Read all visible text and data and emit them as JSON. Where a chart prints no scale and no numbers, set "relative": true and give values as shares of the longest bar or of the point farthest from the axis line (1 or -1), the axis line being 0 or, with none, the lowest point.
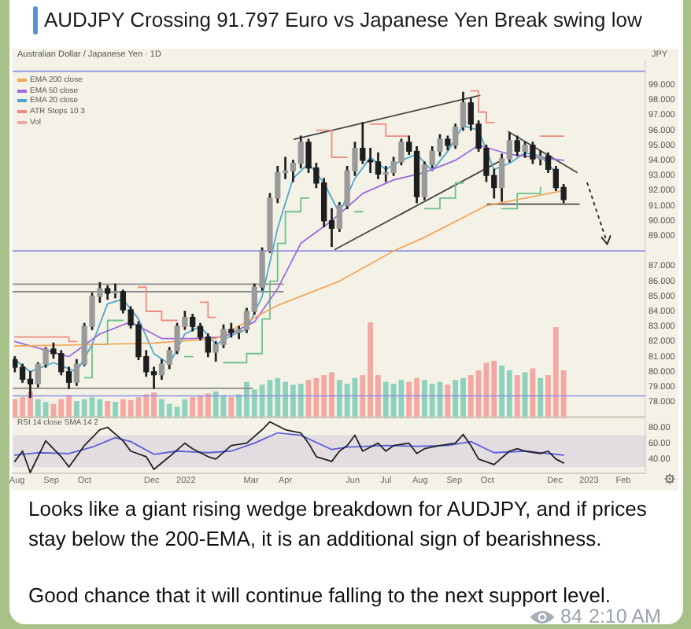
{
  "chart_data": [
    {
      "type": "candlestick",
      "title": "AUDJPY Crossing 91.797 Euro vs Japanese Yen Break swing low",
      "subtitle": "Australian Dollar / Japanese Yen · 1D",
      "ylabel": "JPY",
      "x": [
        "2021-07-30",
        "2021-08-06",
        "2021-08-13",
        "2021-08-20",
        "2021-08-27",
        "2021-09-03",
        "2021-09-10",
        "2021-09-17",
        "2021-09-24",
        "2021-10-01",
        "2021-10-08",
        "2021-10-15",
        "2021-10-22",
        "2021-10-29",
        "2021-11-05",
        "2021-11-12",
        "2021-11-19",
        "2021-11-26",
        "2021-12-03",
        "2021-12-10",
        "2021-12-17",
        "2021-12-24",
        "2021-12-31",
        "2022-01-07",
        "2022-01-14",
        "2022-01-21",
        "2022-01-28",
        "2022-02-04",
        "2022-02-11",
        "2022-02-18",
        "2022-02-25",
        "2022-03-04",
        "2022-03-11",
        "2022-03-18",
        "2022-03-25",
        "2022-04-01",
        "2022-04-08",
        "2022-04-15",
        "2022-04-22",
        "2022-04-29",
        "2022-05-06",
        "2022-05-13",
        "2022-05-20",
        "2022-05-27",
        "2022-06-03",
        "2022-06-10",
        "2022-06-17",
        "2022-06-24",
        "2022-07-01",
        "2022-07-08",
        "2022-07-15",
        "2022-07-22",
        "2022-07-29",
        "2022-08-05",
        "2022-08-12",
        "2022-08-19",
        "2022-08-26",
        "2022-09-02",
        "2022-09-09",
        "2022-09-16",
        "2022-09-23",
        "2022-09-30",
        "2022-10-07",
        "2022-10-14",
        "2022-10-21",
        "2022-10-28",
        "2022-11-04",
        "2022-11-11",
        "2022-11-18",
        "2022-11-25",
        "2022-12-02",
        "2022-12-09"
      ],
      "ohlc": [
        [
          80.8,
          81.0,
          80.0,
          80.3
        ],
        [
          80.3,
          80.5,
          79.3,
          79.5
        ],
        [
          79.5,
          80.0,
          78.3,
          79.2
        ],
        [
          79.2,
          80.6,
          79.0,
          80.5
        ],
        [
          80.5,
          81.6,
          80.3,
          81.5
        ],
        [
          81.5,
          81.9,
          80.9,
          81.2
        ],
        [
          81.2,
          81.4,
          79.8,
          80.0
        ],
        [
          80.0,
          80.3,
          78.9,
          79.3
        ],
        [
          79.3,
          80.8,
          79.1,
          80.5
        ],
        [
          80.5,
          83.2,
          80.4,
          83.0
        ],
        [
          83.0,
          85.2,
          82.8,
          85.0
        ],
        [
          85.0,
          85.9,
          84.6,
          85.5
        ],
        [
          85.5,
          85.7,
          84.8,
          85.2
        ],
        [
          85.2,
          85.8,
          84.9,
          85.3
        ],
        [
          85.3,
          85.4,
          83.9,
          84.1
        ],
        [
          84.1,
          84.3,
          82.9,
          83.1
        ],
        [
          83.1,
          83.3,
          80.8,
          81.0
        ],
        [
          81.0,
          81.4,
          79.7,
          80.0
        ],
        [
          80.0,
          80.3,
          78.9,
          79.8
        ],
        [
          79.8,
          80.8,
          79.5,
          80.5
        ],
        [
          80.5,
          81.6,
          80.2,
          81.4
        ],
        [
          81.4,
          83.2,
          81.2,
          83.0
        ],
        [
          83.0,
          84.0,
          82.8,
          83.6
        ],
        [
          83.6,
          83.8,
          82.7,
          83.0
        ],
        [
          83.0,
          83.2,
          82.1,
          82.3
        ],
        [
          82.3,
          82.5,
          81.0,
          81.3
        ],
        [
          81.3,
          82.0,
          80.7,
          81.8
        ],
        [
          81.8,
          83.1,
          81.6,
          82.8
        ],
        [
          82.8,
          83.2,
          82.3,
          82.6
        ],
        [
          82.6,
          83.0,
          82.2,
          82.8
        ],
        [
          82.8,
          84.2,
          82.6,
          84.0
        ],
        [
          84.0,
          85.8,
          83.8,
          85.6
        ],
        [
          85.6,
          88.2,
          85.4,
          88.0
        ],
        [
          88.0,
          91.8,
          87.9,
          91.5
        ],
        [
          91.5,
          93.6,
          91.2,
          93.2
        ],
        [
          93.2,
          94.2,
          92.8,
          93.3
        ],
        [
          93.3,
          94.0,
          92.6,
          93.8
        ],
        [
          93.8,
          95.6,
          93.5,
          95.2
        ],
        [
          95.2,
          95.4,
          93.2,
          93.5
        ],
        [
          93.5,
          93.8,
          92.2,
          92.5
        ],
        [
          92.5,
          92.8,
          89.6,
          90.0
        ],
        [
          90.0,
          90.8,
          88.3,
          89.5
        ],
        [
          89.5,
          91.2,
          89.3,
          91.0
        ],
        [
          91.0,
          93.6,
          90.8,
          93.3
        ],
        [
          93.3,
          95.2,
          93.0,
          94.8
        ],
        [
          94.8,
          96.5,
          93.8,
          94.0
        ],
        [
          94.0,
          94.8,
          93.2,
          93.9
        ],
        [
          93.9,
          94.5,
          92.8,
          93.1
        ],
        [
          93.1,
          93.6,
          92.6,
          93.2
        ],
        [
          93.2,
          94.2,
          93.0,
          93.9
        ],
        [
          93.9,
          95.4,
          93.7,
          95.2
        ],
        [
          95.2,
          95.6,
          94.4,
          94.6
        ],
        [
          94.6,
          94.9,
          91.2,
          91.6
        ],
        [
          91.6,
          93.9,
          91.4,
          93.7
        ],
        [
          93.7,
          94.9,
          93.5,
          94.6
        ],
        [
          94.6,
          95.7,
          94.3,
          95.4
        ],
        [
          95.4,
          95.6,
          94.7,
          95.0
        ],
        [
          95.0,
          96.4,
          94.8,
          96.2
        ],
        [
          96.2,
          98.5,
          96.0,
          97.8
        ],
        [
          97.8,
          98.1,
          96.0,
          96.4
        ],
        [
          96.4,
          96.6,
          94.6,
          94.8
        ],
        [
          94.8,
          95.0,
          92.6,
          93.0
        ],
        [
          93.0,
          93.4,
          91.5,
          92.2
        ],
        [
          92.2,
          94.4,
          91.3,
          94.1
        ],
        [
          94.1,
          95.8,
          93.9,
          95.3
        ],
        [
          95.3,
          95.6,
          94.3,
          94.6
        ],
        [
          94.6,
          95.2,
          94.2,
          95.0
        ],
        [
          95.0,
          95.2,
          93.8,
          94.1
        ],
        [
          94.1,
          94.6,
          93.7,
          94.3
        ],
        [
          94.3,
          94.5,
          93.2,
          93.4
        ],
        [
          93.4,
          93.6,
          92.0,
          92.2
        ],
        [
          92.2,
          92.4,
          91.2,
          91.4
        ]
      ],
      "color": "#1e1e1e",
      "colors": [
        "#1e1e1e",
        "#1e1e1e",
        "#1e1e1e",
        "#9a9a9a",
        "#9a9a9a",
        "#1e1e1e",
        "#1e1e1e",
        "#1e1e1e",
        "#9a9a9a",
        "#9a9a9a",
        "#9a9a9a",
        "#9a9a9a",
        "#1e1e1e",
        "#9a9a9a",
        "#1e1e1e",
        "#1e1e1e",
        "#1e1e1e",
        "#1e1e1e",
        "#1e1e1e",
        "#9a9a9a",
        "#9a9a9a",
        "#9a9a9a",
        "#9a9a9a",
        "#1e1e1e",
        "#1e1e1e",
        "#1e1e1e",
        "#9a9a9a",
        "#9a9a9a",
        "#1e1e1e",
        "#9a9a9a",
        "#9a9a9a",
        "#9a9a9a",
        "#9a9a9a",
        "#9a9a9a",
        "#9a9a9a",
        "#9a9a9a",
        "#9a9a9a",
        "#9a9a9a",
        "#1e1e1e",
        "#1e1e1e",
        "#1e1e1e",
        "#1e1e1e",
        "#9a9a9a",
        "#9a9a9a",
        "#9a9a9a",
        "#1e1e1e",
        "#1e1e1e",
        "#1e1e1e",
        "#9a9a9a",
        "#9a9a9a",
        "#9a9a9a",
        "#1e1e1e",
        "#1e1e1e",
        "#9a9a9a",
        "#9a9a9a",
        "#9a9a9a",
        "#1e1e1e",
        "#9a9a9a",
        "#9a9a9a",
        "#1e1e1e",
        "#1e1e1e",
        "#1e1e1e",
        "#1e1e1e",
        "#9a9a9a",
        "#9a9a9a",
        "#1e1e1e",
        "#9a9a9a",
        "#1e1e1e",
        "#9a9a9a",
        "#1e1e1e",
        "#1e1e1e",
        "#1e1e1e"
      ],
      "series": [
        {
          "name": "EMA 200 close",
          "type": "line",
          "color": "#f2a65a",
          "x": [
            "2021-07-30",
            "2021-10-08",
            "2021-12-03",
            "2022-01-28",
            "2022-03-25",
            "2022-05-20",
            "2022-07-08",
            "2022-08-05",
            "2022-09-30",
            "2022-12-09"
          ],
          "values": [
            81.7,
            81.8,
            81.9,
            82.2,
            84.4,
            86.0,
            88.0,
            88.9,
            91.0,
            92.0
          ]
        },
        {
          "name": "EMA 50 close",
          "type": "line",
          "color": "#9c6ade",
          "x": [
            "2021-07-30",
            "2021-09-17",
            "2021-10-15",
            "2021-11-12",
            "2021-12-10",
            "2022-01-07",
            "2022-02-04",
            "2022-03-04",
            "2022-03-25",
            "2022-04-15",
            "2022-05-13",
            "2022-06-10",
            "2022-07-08",
            "2022-08-05",
            "2022-09-02",
            "2022-09-23",
            "2022-10-21",
            "2022-12-09"
          ],
          "values": [
            82.0,
            81.0,
            82.5,
            83.3,
            82.2,
            82.2,
            82.3,
            83.3,
            85.5,
            88.5,
            90.0,
            91.8,
            92.7,
            93.2,
            94.0,
            95.0,
            94.4,
            94.0
          ]
        },
        {
          "name": "EMA 20 close",
          "type": "line",
          "color": "#4ea6d0",
          "x": [
            "2021-07-30",
            "2021-08-13",
            "2021-09-03",
            "2021-09-24",
            "2021-10-08",
            "2021-10-22",
            "2021-11-05",
            "2021-11-19",
            "2021-12-03",
            "2021-12-17",
            "2021-12-31",
            "2022-01-14",
            "2022-01-28",
            "2022-02-11",
            "2022-02-25",
            "2022-03-11",
            "2022-03-25",
            "2022-04-08",
            "2022-04-22",
            "2022-05-06",
            "2022-05-20",
            "2022-06-03",
            "2022-06-17",
            "2022-07-01",
            "2022-07-15",
            "2022-07-29",
            "2022-08-12",
            "2022-08-26",
            "2022-09-09",
            "2022-09-23",
            "2022-10-07",
            "2022-10-21",
            "2022-11-04",
            "2022-11-18",
            "2022-12-02"
          ],
          "values": [
            80.8,
            80.0,
            80.6,
            80.0,
            81.8,
            84.5,
            84.8,
            83.5,
            81.2,
            80.5,
            82.5,
            83.0,
            81.8,
            82.4,
            82.8,
            85.0,
            89.5,
            92.8,
            93.8,
            92.5,
            90.5,
            92.8,
            94.2,
            93.4,
            94.0,
            94.4,
            93.3,
            94.6,
            96.3,
            96.0,
            93.4,
            93.8,
            94.5,
            94.3,
            93.2
          ]
        },
        {
          "name": "ATR Stops 10 3",
          "type": "step",
          "color": "#ef8a7e",
          "x": [
            "2021-07-30",
            "2021-08-27",
            "2021-09-17",
            "2021-09-24",
            "2021-10-01",
            "2021-11-19",
            "2021-11-26",
            "2021-12-10",
            "2021-12-24",
            "2021-12-31",
            "2022-01-14",
            "2022-01-21",
            "2022-01-28",
            "2022-02-04",
            "2022-04-29",
            "2022-05-13",
            "2022-05-27",
            "2022-06-03",
            "2022-06-17",
            "2022-07-01",
            "2022-07-22",
            "2022-07-29",
            "2022-09-16",
            "2022-09-23",
            "2022-09-30",
            "2022-10-07",
            "2022-10-14",
            "2022-11-18",
            "2022-12-09"
          ],
          "values": [
            82.3,
            82.3,
            82.0,
            82.0,
            null,
            85.6,
            84.0,
            83.4,
            83.4,
            null,
            84.6,
            83.6,
            83.6,
            null,
            96.0,
            94.2,
            94.2,
            null,
            96.4,
            95.6,
            95.6,
            null,
            98.6,
            97.2,
            96.5,
            96.5,
            null,
            95.6,
            95.6
          ]
        },
        {
          "type": "step",
          "color": "#6cc08a",
          "x": [
            "2021-10-01",
            "2021-10-08",
            "2021-10-22",
            "2021-11-05",
            "2021-11-12",
            "2021-12-31",
            "2022-01-07",
            "2022-01-14",
            "2022-02-04",
            "2022-02-25",
            "2022-03-11",
            "2022-03-18",
            "2022-03-25",
            "2022-04-01",
            "2022-04-15",
            "2022-04-22",
            "2022-04-29",
            "2022-06-03",
            "2022-06-10",
            "2022-06-17",
            "2022-08-05",
            "2022-08-19",
            "2022-09-02",
            "2022-09-09",
            "2022-09-16",
            "2022-10-14",
            "2022-10-28",
            "2022-11-18"
          ],
          "values": [
            79.6,
            81.8,
            83.4,
            83.4,
            null,
            81.0,
            81.0,
            null,
            80.6,
            81.2,
            83.5,
            86.0,
            88.5,
            90.6,
            91.5,
            91.5,
            null,
            90.6,
            90.6,
            null,
            90.8,
            91.5,
            92.5,
            92.5,
            null,
            90.8,
            91.8,
            92.2
          ]
        },
        {
          "type": "line",
          "color": "#444444",
          "x": [
            "2022-04-09",
            "2022-09-24"
          ],
          "values": [
            95.4,
            98.3
          ]
        },
        {
          "type": "line",
          "color": "#444444",
          "x": [
            "2022-05-16",
            "2022-10-11"
          ],
          "values": [
            88.1,
            93.9
          ]
        },
        {
          "type": "line",
          "color": "#444444",
          "x": [
            "2022-10-20",
            "2022-12-21"
          ],
          "values": [
            95.9,
            93.2
          ]
        },
        {
          "type": "line",
          "color": "#444444",
          "x": [
            "2022-10-01",
            "2022-12-23"
          ],
          "values": [
            91.1,
            91.1
          ]
        },
        {
          "type": "line",
          "color": "#8a8a8a",
          "x": [
            "2021-07-28",
            "2022-03-30"
          ],
          "values": [
            85.8,
            85.8
          ]
        },
        {
          "type": "line",
          "color": "#8a8a8a",
          "x": [
            "2021-07-28",
            "2022-03-30"
          ],
          "values": [
            85.3,
            85.3
          ]
        },
        {
          "type": "line",
          "color": "#8a8a8a",
          "x": [
            "2021-07-28",
            "2022-03-02"
          ],
          "values": [
            78.9,
            78.9
          ]
        }
      ],
      "ref_lines": [
        {
          "axis": "y",
          "value": 99.9,
          "color": "#8d8fe8"
        },
        {
          "axis": "y",
          "value": 88.0,
          "color": "#8d8fe8"
        },
        {
          "axis": "y",
          "value": 78.4,
          "color": "#8d8fe8"
        }
      ],
      "xlim": [
        "2021-07-28",
        "2023-02-21"
      ],
      "ylim": [
        77,
        100.6
      ],
      "yticks": [
        {
          "value": 78,
          "label": "78.000"
        },
        {
          "value": 79,
          "label": "79.000"
        },
        {
          "value": 80,
          "label": "80.000"
        },
        {
          "value": 81,
          "label": "81.000"
        },
        {
          "value": 82,
          "label": "82.000"
        },
        {
          "value": 83,
          "label": "83.000"
        },
        {
          "value": 84,
          "label": "84.000"
        },
        {
          "value": 85,
          "label": "85.000"
        },
        {
          "value": 86,
          "label": "86.000"
        },
        {
          "value": 87,
          "label": "87.000"
        },
        {
          "value": 88,
          "label": null
        },
        {
          "value": 89,
          "label": "89.000"
        },
        {
          "value": 90,
          "label": "90.000"
        },
        {
          "value": 91,
          "label": "91.000"
        },
        {
          "value": 92,
          "label": "92.000"
        },
        {
          "value": 93,
          "label": "93.000"
        },
        {
          "value": 94,
          "label": "94.000"
        },
        {
          "value": 95,
          "label": "95.000"
        },
        {
          "value": 96,
          "label": "96.000"
        },
        {
          "value": 97,
          "label": "97.000"
        },
        {
          "value": 98,
          "label": "98.000"
        },
        {
          "value": 99,
          "label": "99.000"
        }
      ],
      "tick_labels": "y",
      "legend": "top left",
      "annotations": [
        "Looks like a giant rising wedge breakdown for AUDJPY, and if prices stay below the 200-EMA, it is an additional sign of bearishness.",
        "Good chance that it will continue falling to the next support level.",
        "84",
        "2:10 AM"
      ]
    },
    {
      "type": "bar",
      "relative": true,
      "x": [
        "2021-07-30",
        "2021-08-06",
        "2021-08-13",
        "2021-08-20",
        "2021-08-27",
        "2021-09-03",
        "2021-09-10",
        "2021-09-17",
        "2021-09-24",
        "2021-10-01",
        "2021-10-08",
        "2021-10-15",
        "2021-10-22",
        "2021-10-29",
        "2021-11-05",
        "2021-11-12",
        "2021-11-19",
        "2021-11-26",
        "2021-12-03",
        "2021-12-10",
        "2021-12-17",
        "2021-12-24",
        "2021-12-31",
        "2022-01-07",
        "2022-01-14",
        "2022-01-21",
        "2022-01-28",
        "2022-02-04",
        "2022-02-11",
        "2022-02-18",
        "2022-02-25",
        "2022-03-04",
        "2022-03-11",
        "2022-03-18",
        "2022-03-25",
        "2022-04-01",
        "2022-04-08",
        "2022-04-15",
        "2022-04-22",
        "2022-04-29",
        "2022-05-06",
        "2022-05-13",
        "2022-05-20",
        "2022-05-27",
        "2022-06-03",
        "2022-06-10",
        "2022-06-17",
        "2022-06-24",
        "2022-07-01",
        "2022-07-08",
        "2022-07-15",
        "2022-07-22",
        "2022-07-29",
        "2022-08-05",
        "2022-08-12",
        "2022-08-19",
        "2022-08-26",
        "2022-09-02",
        "2022-09-09",
        "2022-09-16",
        "2022-09-23",
        "2022-09-30",
        "2022-10-07",
        "2022-10-14",
        "2022-10-21",
        "2022-10-28",
        "2022-11-04",
        "2022-11-11",
        "2022-11-18",
        "2022-11-25",
        "2022-12-02",
        "2022-12-09"
      ],
      "series": [
        {
          "name": "Vol",
          "values": [
            0.2,
            0.22,
            0.28,
            0.2,
            0.17,
            0.15,
            0.2,
            0.24,
            0.18,
            0.2,
            0.22,
            0.2,
            0.18,
            0.17,
            0.2,
            0.19,
            0.22,
            0.25,
            0.27,
            0.2,
            0.15,
            0.12,
            0.2,
            0.22,
            0.24,
            0.26,
            0.28,
            0.24,
            0.22,
            0.25,
            0.38,
            0.3,
            0.35,
            0.4,
            0.42,
            0.38,
            0.35,
            0.36,
            0.4,
            0.42,
            0.45,
            0.48,
            0.4,
            0.36,
            0.42,
            0.45,
            1.0,
            0.45,
            0.38,
            0.36,
            0.4,
            0.38,
            0.42,
            0.4,
            0.36,
            0.38,
            0.35,
            0.4,
            0.42,
            0.45,
            0.5,
            0.58,
            0.6,
            0.55,
            0.5,
            0.45,
            0.48,
            0.52,
            0.42,
            0.45,
            0.95,
            0.5
          ],
          "colors": [
            "#f4a7a3",
            "#f4a7a3",
            "#f4a7a3",
            "#8ed1bd",
            "#8ed1bd",
            "#f4a7a3",
            "#f4a7a3",
            "#f4a7a3",
            "#8ed1bd",
            "#8ed1bd",
            "#8ed1bd",
            "#8ed1bd",
            "#f4a7a3",
            "#8ed1bd",
            "#f4a7a3",
            "#f4a7a3",
            "#f4a7a3",
            "#f4a7a3",
            "#f4a7a3",
            "#8ed1bd",
            "#8ed1bd",
            "#8ed1bd",
            "#8ed1bd",
            "#f4a7a3",
            "#f4a7a3",
            "#f4a7a3",
            "#8ed1bd",
            "#8ed1bd",
            "#f4a7a3",
            "#8ed1bd",
            "#8ed1bd",
            "#8ed1bd",
            "#8ed1bd",
            "#8ed1bd",
            "#8ed1bd",
            "#8ed1bd",
            "#8ed1bd",
            "#8ed1bd",
            "#f4a7a3",
            "#f4a7a3",
            "#f4a7a3",
            "#f4a7a3",
            "#8ed1bd",
            "#8ed1bd",
            "#8ed1bd",
            "#f4a7a3",
            "#f4a7a3",
            "#f4a7a3",
            "#8ed1bd",
            "#8ed1bd",
            "#8ed1bd",
            "#f4a7a3",
            "#f4a7a3",
            "#8ed1bd",
            "#8ed1bd",
            "#8ed1bd",
            "#f4a7a3",
            "#8ed1bd",
            "#8ed1bd",
            "#f4a7a3",
            "#f4a7a3",
            "#f4a7a3",
            "#f4a7a3",
            "#8ed1bd",
            "#8ed1bd",
            "#f4a7a3",
            "#8ed1bd",
            "#f4a7a3",
            "#8ed1bd",
            "#f4a7a3",
            "#f4a7a3",
            "#f4a7a3"
          ]
        }
      ],
      "xlim": [
        "2021-07-28",
        "2023-02-21"
      ],
      "tick_labels": false,
      "legend": "top left"
    },
    {
      "type": "line",
      "title": "RSI 14 close SMA 14 2",
      "series": [
        {
          "color": "#222222",
          "x": [
            "2021-07-30",
            "2021-08-06",
            "2021-08-13",
            "2021-08-27",
            "2021-09-10",
            "2021-09-17",
            "2021-10-01",
            "2021-10-15",
            "2021-10-22",
            "2021-11-05",
            "2021-11-12",
            "2021-11-26",
            "2021-12-03",
            "2021-12-17",
            "2021-12-31",
            "2022-01-07",
            "2022-01-21",
            "2022-01-28",
            "2022-02-11",
            "2022-02-25",
            "2022-03-11",
            "2022-03-18",
            "2022-04-01",
            "2022-04-15",
            "2022-04-22",
            "2022-04-29",
            "2022-05-13",
            "2022-05-20",
            "2022-05-27",
            "2022-06-03",
            "2022-06-10",
            "2022-06-24",
            "2022-07-01",
            "2022-07-08",
            "2022-07-22",
            "2022-07-29",
            "2022-08-05",
            "2022-08-19",
            "2022-09-02",
            "2022-09-09",
            "2022-09-16",
            "2022-09-23",
            "2022-10-07",
            "2022-10-21",
            "2022-10-28",
            "2022-11-04",
            "2022-11-18",
            "2022-11-25",
            "2022-12-02",
            "2022-12-09"
          ],
          "values": [
            37,
            50,
            23,
            63,
            43,
            30,
            57,
            77,
            80,
            63,
            50,
            43,
            27,
            43,
            60,
            53,
            43,
            40,
            57,
            60,
            77,
            87,
            77,
            73,
            60,
            43,
            37,
            50,
            57,
            70,
            50,
            60,
            50,
            57,
            60,
            47,
            53,
            57,
            60,
            71,
            57,
            40,
            33,
            50,
            53,
            50,
            47,
            50,
            40,
            35
          ]
        },
        {
          "color": "#5b5fd6",
          "x": [
            "2021-07-30",
            "2021-08-20",
            "2021-09-17",
            "2021-10-08",
            "2021-10-29",
            "2021-11-12",
            "2021-12-03",
            "2021-12-24",
            "2022-01-21",
            "2022-02-11",
            "2022-03-04",
            "2022-03-25",
            "2022-04-15",
            "2022-05-13",
            "2022-05-27",
            "2022-07-01",
            "2022-07-29",
            "2022-08-26",
            "2022-09-16",
            "2022-10-07",
            "2022-11-04",
            "2022-12-09"
          ],
          "values": [
            45,
            48,
            47,
            55,
            67,
            62,
            46,
            50,
            48,
            50,
            60,
            73,
            70,
            52,
            55,
            57,
            56,
            57,
            62,
            48,
            50,
            45
          ]
        }
      ],
      "bands": [
        {
          "axis": "y",
          "from": 30,
          "to": 70,
          "color": "#8c6fd0"
        }
      ],
      "xlim": [
        "2021-07-28",
        "2023-02-21"
      ],
      "xticks": [
        {
          "value": "2021-08-01",
          "label": "Aug"
        },
        {
          "value": "2021-09-01",
          "label": "Sep"
        },
        {
          "value": "2021-10-01",
          "label": "Oct"
        },
        {
          "value": "2021-12-01",
          "label": "Dec"
        },
        {
          "value": "2022-01-01",
          "label": "2022"
        },
        {
          "value": "2022-03-01",
          "label": "Mar"
        },
        {
          "value": "2022-04-01",
          "label": "Apr"
        },
        {
          "value": "2022-06-01",
          "label": "Jun"
        },
        {
          "value": "2022-07-01",
          "label": "Jul"
        },
        {
          "value": "2022-08-01",
          "label": "Aug"
        },
        {
          "value": "2022-09-01",
          "label": "Sep"
        },
        {
          "value": "2022-10-01",
          "label": "Oct"
        },
        {
          "value": "2022-12-01",
          "label": "Dec"
        },
        {
          "value": "2023-01-01",
          "label": "2023"
        },
        {
          "value": "2023-02-01",
          "label": "Feb"
        }
      ],
      "ylim": [
        22,
        90
      ],
      "yticks": [
        {
          "value": 80,
          "label": "80.00"
        },
        {
          "value": 60,
          "label": "60.00"
        },
        {
          "value": 40,
          "label": "40.00"
        }
      ]
    }
  ]
}
